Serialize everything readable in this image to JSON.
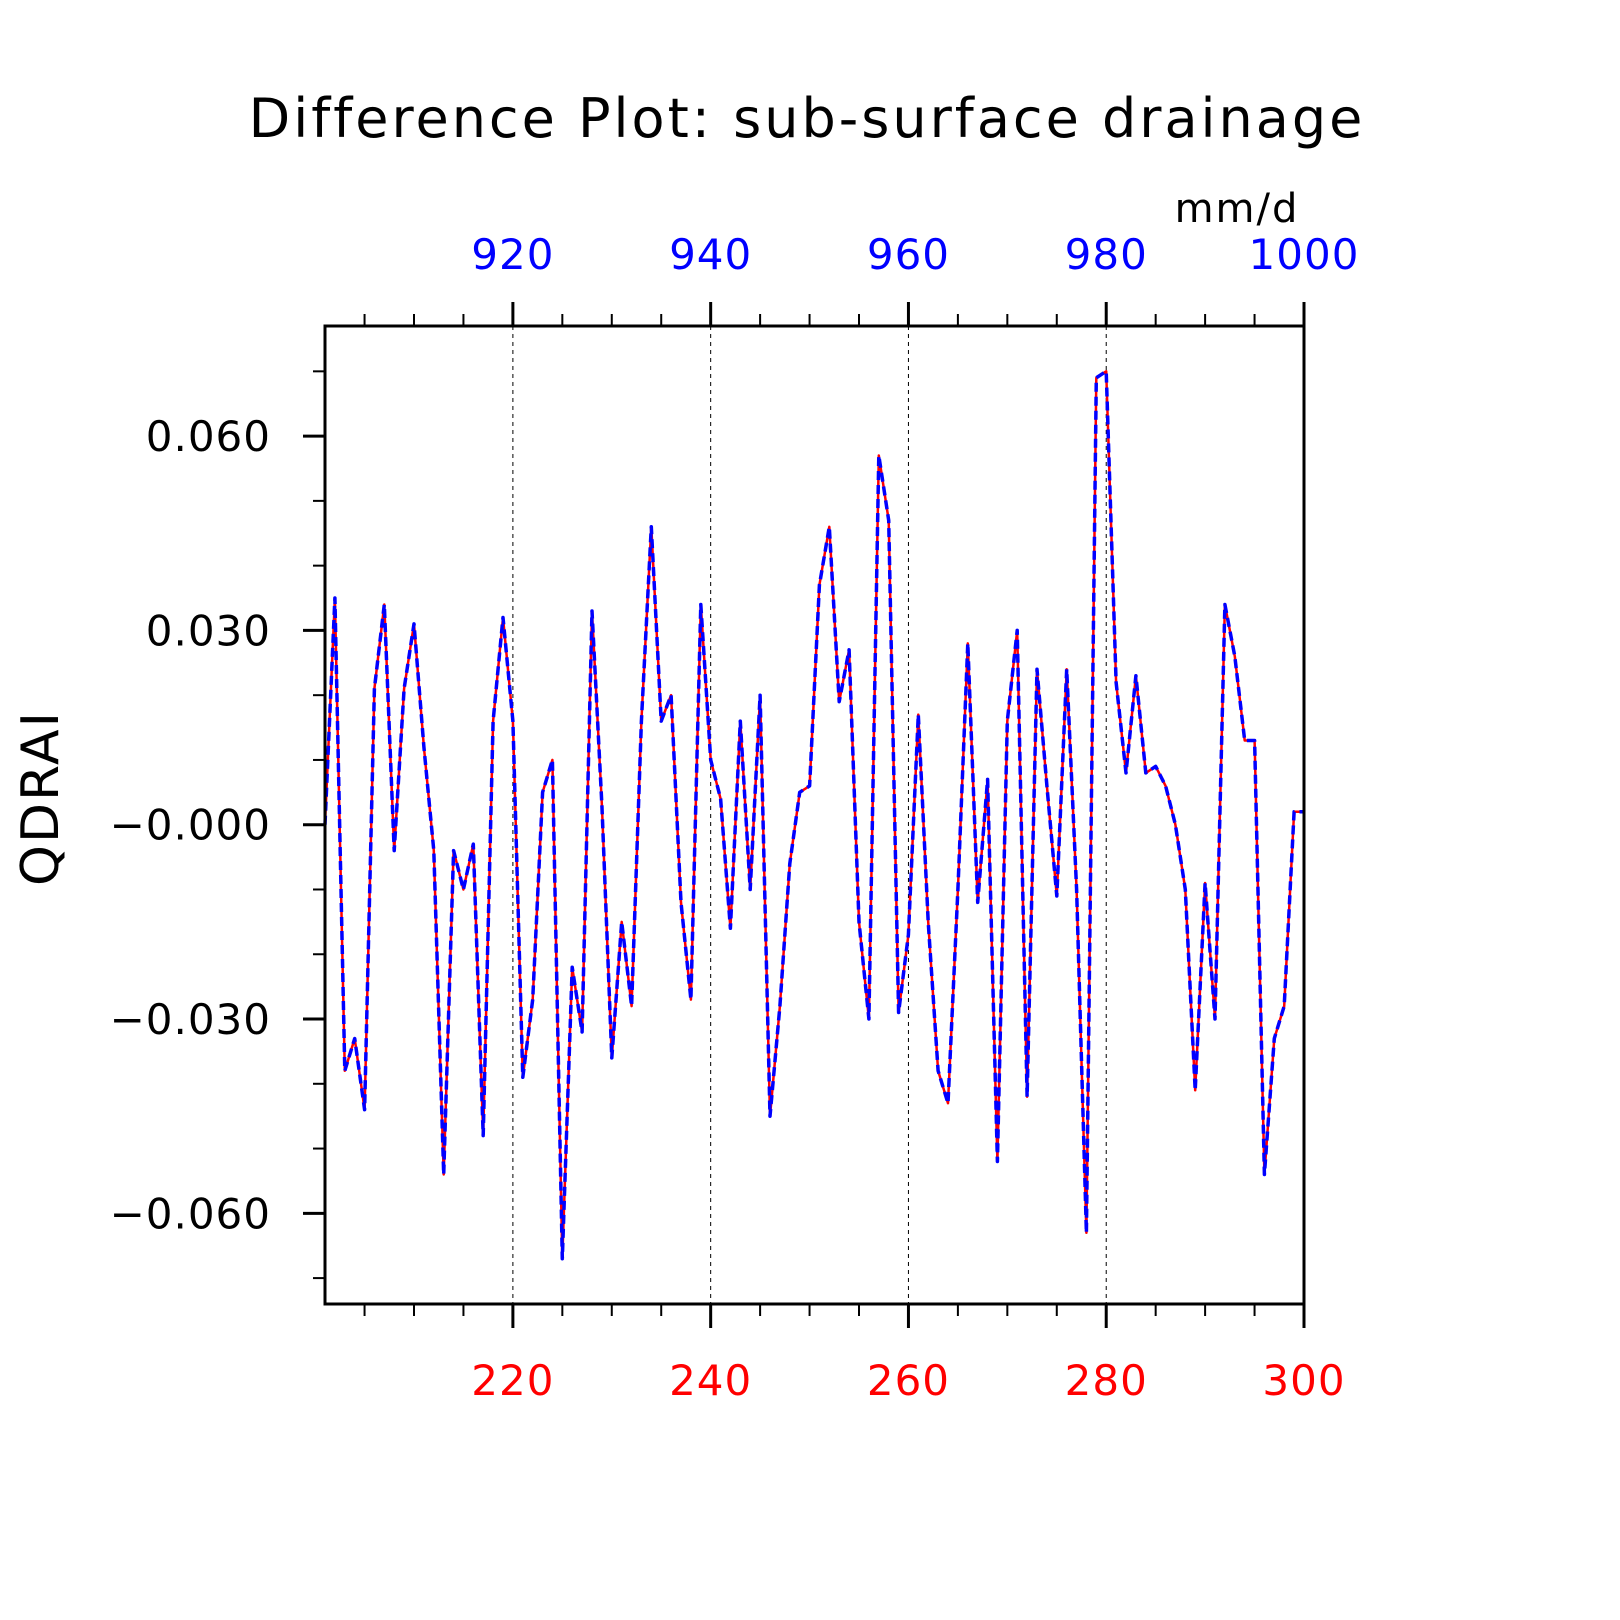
{
  "chart_data": {
    "type": "line",
    "title": "Difference Plot: sub-surface drainage",
    "units": "mm/d",
    "ylabel": "QDRAI",
    "xlabel": "",
    "xlim": [
      201,
      300
    ],
    "ylim": [
      -0.074,
      0.077
    ],
    "x_ticks": [
      220,
      240,
      260,
      280,
      300
    ],
    "x_tick_labels": [
      "220",
      "240",
      "260",
      "280",
      "300"
    ],
    "x2_ticks": [
      920,
      940,
      960,
      980,
      1000
    ],
    "x2_tick_labels": [
      "920",
      "940",
      "960",
      "980",
      "1000"
    ],
    "x2_offset": 700,
    "y_ticks": [
      0.06,
      0.03,
      0.0,
      -0.03,
      -0.06
    ],
    "y_tick_labels": [
      "0.060",
      "0.030",
      "−0.000",
      "−0.030",
      "−0.060"
    ],
    "grid": "vertical dashed at major x ticks",
    "colors": {
      "series_a": "#ff0000",
      "series_b": "#0000ff",
      "x_bottom_labels": "#ff0000",
      "x_top_labels": "#0000ff",
      "axes": "#000000"
    },
    "x": [
      201,
      202,
      203,
      204,
      205,
      206,
      207,
      208,
      209,
      210,
      211,
      212,
      213,
      214,
      215,
      216,
      217,
      218,
      219,
      220,
      221,
      222,
      223,
      224,
      225,
      226,
      227,
      228,
      229,
      230,
      231,
      232,
      233,
      234,
      235,
      236,
      237,
      238,
      239,
      240,
      241,
      242,
      243,
      244,
      245,
      246,
      247,
      248,
      249,
      250,
      251,
      252,
      253,
      254,
      255,
      256,
      257,
      258,
      259,
      260,
      261,
      262,
      263,
      264,
      265,
      266,
      267,
      268,
      269,
      270,
      271,
      272,
      273,
      274,
      275,
      276,
      277,
      278,
      279,
      280,
      281,
      282,
      283,
      284,
      285,
      286,
      287,
      288,
      289,
      290,
      291,
      292,
      293,
      294,
      295,
      296,
      297,
      298,
      299,
      300
    ],
    "series": [
      {
        "line": "solid",
        "color": "#ff0000",
        "values": [
          0.0,
          0.035,
          -0.038,
          -0.033,
          -0.044,
          0.021,
          0.034,
          -0.004,
          0.021,
          0.031,
          0.012,
          -0.004,
          -0.054,
          -0.004,
          -0.01,
          -0.003,
          -0.048,
          0.016,
          0.032,
          0.016,
          -0.039,
          -0.027,
          0.005,
          0.01,
          -0.067,
          -0.022,
          -0.032,
          0.033,
          0.003,
          -0.036,
          -0.015,
          -0.028,
          0.016,
          0.046,
          0.016,
          0.02,
          -0.012,
          -0.027,
          0.034,
          0.01,
          0.004,
          -0.016,
          0.016,
          -0.01,
          0.02,
          -0.045,
          -0.028,
          -0.006,
          0.005,
          0.006,
          0.037,
          0.046,
          0.019,
          0.027,
          -0.015,
          -0.03,
          0.057,
          0.047,
          -0.029,
          -0.017,
          0.017,
          -0.015,
          -0.038,
          -0.043,
          -0.01,
          0.028,
          -0.012,
          0.007,
          -0.052,
          0.016,
          0.03,
          -0.042,
          0.024,
          0.006,
          -0.011,
          0.024,
          -0.01,
          -0.063,
          0.069,
          0.07,
          0.022,
          0.008,
          0.023,
          0.008,
          0.009,
          0.006,
          0.0,
          -0.01,
          -0.041,
          -0.009,
          -0.03,
          0.034,
          0.026,
          0.013,
          0.013,
          -0.054,
          -0.033,
          -0.028,
          0.002,
          0.002
        ]
      },
      {
        "line": "dashed",
        "color": "#0000ff",
        "values": [
          0.0,
          0.035,
          -0.038,
          -0.033,
          -0.044,
          0.021,
          0.034,
          -0.004,
          0.021,
          0.031,
          0.012,
          -0.004,
          -0.054,
          -0.004,
          -0.01,
          -0.003,
          -0.048,
          0.016,
          0.032,
          0.016,
          -0.039,
          -0.027,
          0.005,
          0.01,
          -0.067,
          -0.022,
          -0.032,
          0.033,
          0.003,
          -0.036,
          -0.015,
          -0.028,
          0.016,
          0.046,
          0.016,
          0.02,
          -0.012,
          -0.027,
          0.034,
          0.01,
          0.004,
          -0.016,
          0.016,
          -0.01,
          0.02,
          -0.045,
          -0.028,
          -0.006,
          0.005,
          0.006,
          0.037,
          0.046,
          0.019,
          0.027,
          -0.015,
          -0.03,
          0.057,
          0.047,
          -0.029,
          -0.017,
          0.017,
          -0.015,
          -0.038,
          -0.043,
          -0.01,
          0.028,
          -0.012,
          0.007,
          -0.052,
          0.016,
          0.03,
          -0.042,
          0.024,
          0.006,
          -0.011,
          0.024,
          -0.01,
          -0.063,
          0.069,
          0.07,
          0.022,
          0.008,
          0.023,
          0.008,
          0.009,
          0.006,
          0.0,
          -0.01,
          -0.041,
          -0.009,
          -0.03,
          0.034,
          0.026,
          0.013,
          0.013,
          -0.054,
          -0.033,
          -0.028,
          0.002,
          0.002
        ]
      }
    ]
  }
}
